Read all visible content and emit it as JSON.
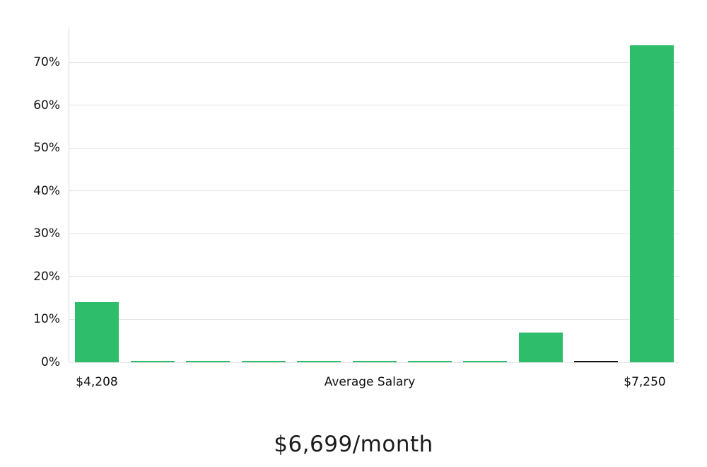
{
  "chart_data": {
    "type": "bar",
    "title": "$6,699/month",
    "x_axis_labels": {
      "left": "$4,208",
      "center": "Average Salary",
      "right": "$7,250"
    },
    "y_ticks": [
      0,
      10,
      20,
      30,
      40,
      50,
      60,
      70
    ],
    "y_tick_suffix": "%",
    "ylim": [
      0,
      78
    ],
    "categories": [
      "$4,208",
      "",
      "",
      "",
      "",
      "",
      "",
      "",
      "",
      "",
      "$7,250"
    ],
    "bars": [
      {
        "value": 14,
        "color": "#2EBD6B"
      },
      {
        "value": 0.3,
        "color": "#2EBD6B"
      },
      {
        "value": 0.3,
        "color": "#2EBD6B"
      },
      {
        "value": 0.3,
        "color": "#2EBD6B"
      },
      {
        "value": 0.3,
        "color": "#2EBD6B"
      },
      {
        "value": 0.3,
        "color": "#2EBD6B"
      },
      {
        "value": 0.3,
        "color": "#2EBD6B"
      },
      {
        "value": 0.3,
        "color": "#2EBD6B"
      },
      {
        "value": 7,
        "color": "#2EBD6B"
      },
      {
        "value": 0.4,
        "color": "#111111"
      },
      {
        "value": 74,
        "color": "#2EBD6B"
      }
    ],
    "colors": {
      "bar": "#2EBD6B",
      "grid": "#e5e5e5",
      "axis": "#d8d8d8",
      "text": "#111111"
    },
    "legend": "none",
    "grid": "horizontal"
  }
}
